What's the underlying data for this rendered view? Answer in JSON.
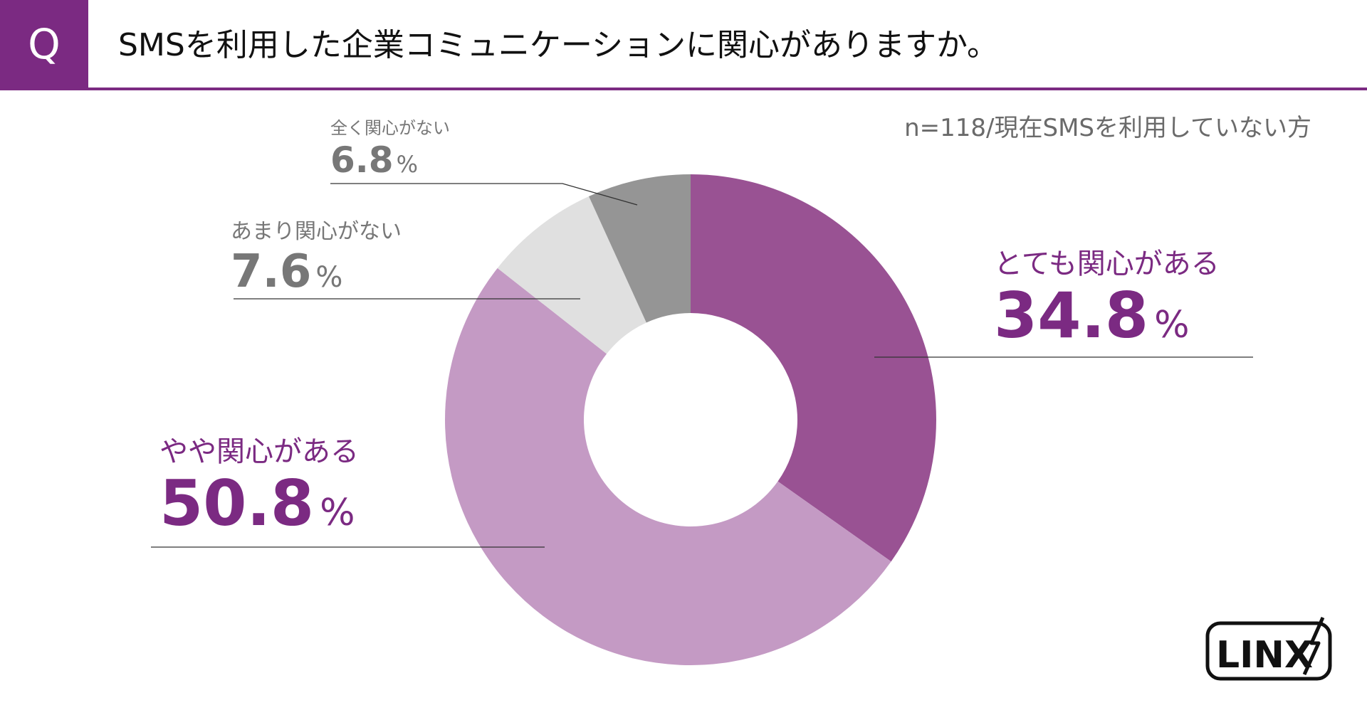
{
  "header": {
    "q_mark": "Q",
    "question": "SMSを利用した企業コミュニケーションに関心がありますか。"
  },
  "sample_note": "n=118/現在SMSを利用していない方",
  "percent_sign": "%",
  "chart_data": {
    "type": "pie",
    "donut": true,
    "title": "SMSを利用した企業コミュニケーションに関心がありますか。",
    "start": "12 o'clock, clockwise",
    "slices": [
      {
        "label": "とても関心がある",
        "value": 34.8,
        "display": "34.8",
        "color": "#995293"
      },
      {
        "label": "やや関心がある",
        "value": 50.8,
        "display": "50.8",
        "color": "#c49ac4"
      },
      {
        "label": "あまり関心がない",
        "value": 7.6,
        "display": "7.6",
        "color": "#e0e0e0"
      },
      {
        "label": "全く関心がない",
        "value": 6.8,
        "display": "6.8",
        "color": "#959595"
      }
    ]
  },
  "logo": {
    "text": "LINX"
  },
  "colors": {
    "accent": "#7b2a82",
    "gray_text": "#777777"
  }
}
